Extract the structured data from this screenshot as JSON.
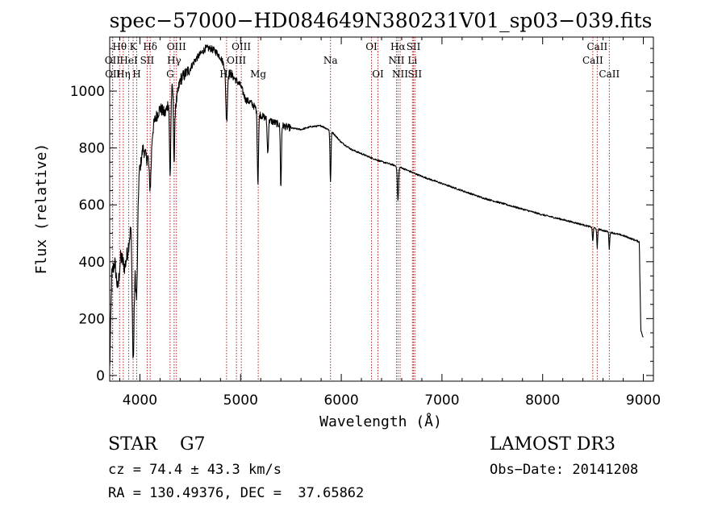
{
  "chart_data": {
    "type": "line",
    "title": "spec−57000−HD084649N380231V01_sp03−039.fits",
    "xlabel": "Wavelength (Å)",
    "ylabel": "Flux (relative)",
    "xlim": [
      3700,
      9100
    ],
    "ylim": [
      -20,
      1190
    ],
    "xticks": [
      {
        "value": 4000,
        "label": "4000"
      },
      {
        "value": 5000,
        "label": "5000"
      },
      {
        "value": 6000,
        "label": "6000"
      },
      {
        "value": 7000,
        "label": "7000"
      },
      {
        "value": 8000,
        "label": "8000"
      },
      {
        "value": 9000,
        "label": "9000"
      }
    ],
    "yticks": [
      {
        "value": 0,
        "label": "0"
      },
      {
        "value": 200,
        "label": "200"
      },
      {
        "value": 400,
        "label": "400"
      },
      {
        "value": 600,
        "label": "600"
      },
      {
        "value": 800,
        "label": "800"
      },
      {
        "value": 1000,
        "label": "1000"
      }
    ],
    "line_color": "#000000",
    "marker_color": "#b22222",
    "spectrum_anchors": [
      [
        3700,
        20
      ],
      [
        3720,
        350
      ],
      [
        3750,
        400
      ],
      [
        3780,
        300
      ],
      [
        3810,
        420
      ],
      [
        3850,
        380
      ],
      [
        3880,
        440
      ],
      [
        3910,
        520
      ],
      [
        3930,
        300
      ],
      [
        3960,
        420
      ],
      [
        3990,
        700
      ],
      [
        4030,
        800
      ],
      [
        4070,
        760
      ],
      [
        4100,
        820
      ],
      [
        4150,
        900
      ],
      [
        4200,
        940
      ],
      [
        4250,
        920
      ],
      [
        4300,
        980
      ],
      [
        4330,
        1020
      ],
      [
        4360,
        960
      ],
      [
        4400,
        1040
      ],
      [
        4450,
        1060
      ],
      [
        4500,
        1080
      ],
      [
        4550,
        1110
      ],
      [
        4600,
        1130
      ],
      [
        4650,
        1150
      ],
      [
        4700,
        1150
      ],
      [
        4750,
        1140
      ],
      [
        4800,
        1120
      ],
      [
        4850,
        1080
      ],
      [
        4900,
        1060
      ],
      [
        4950,
        1040
      ],
      [
        5000,
        1020
      ],
      [
        5050,
        970
      ],
      [
        5100,
        960
      ],
      [
        5150,
        940
      ],
      [
        5200,
        915
      ],
      [
        5300,
        895
      ],
      [
        5400,
        880
      ],
      [
        5500,
        870
      ],
      [
        5600,
        865
      ],
      [
        5700,
        875
      ],
      [
        5800,
        878
      ],
      [
        5900,
        860
      ],
      [
        6000,
        820
      ],
      [
        6100,
        795
      ],
      [
        6200,
        780
      ],
      [
        6300,
        765
      ],
      [
        6400,
        752
      ],
      [
        6500,
        742
      ],
      [
        6600,
        730
      ],
      [
        6700,
        715
      ],
      [
        6800,
        700
      ],
      [
        7000,
        675
      ],
      [
        7200,
        650
      ],
      [
        7400,
        625
      ],
      [
        7600,
        605
      ],
      [
        7800,
        585
      ],
      [
        8000,
        565
      ],
      [
        8200,
        548
      ],
      [
        8400,
        530
      ],
      [
        8600,
        510
      ],
      [
        8800,
        492
      ],
      [
        8960,
        470
      ],
      [
        8975,
        160
      ],
      [
        9000,
        130
      ]
    ],
    "spectrum_dips": [
      {
        "center": 3934,
        "depth": 260,
        "width": 8
      },
      {
        "center": 3969,
        "depth": 220,
        "width": 8
      },
      {
        "center": 4102,
        "depth": 160,
        "width": 10
      },
      {
        "center": 4300,
        "depth": 280,
        "width": 6
      },
      {
        "center": 4340,
        "depth": 250,
        "width": 6
      },
      {
        "center": 4861,
        "depth": 180,
        "width": 8
      },
      {
        "center": 5172,
        "depth": 250,
        "width": 6
      },
      {
        "center": 5270,
        "depth": 120,
        "width": 6
      },
      {
        "center": 5400,
        "depth": 220,
        "width": 5
      },
      {
        "center": 5893,
        "depth": 180,
        "width": 5
      },
      {
        "center": 6563,
        "depth": 120,
        "width": 6
      },
      {
        "center": 8498,
        "depth": 50,
        "width": 4
      },
      {
        "center": 8542,
        "depth": 70,
        "width": 4
      },
      {
        "center": 8662,
        "depth": 60,
        "width": 4
      }
    ],
    "spectral_lines": [
      {
        "wavelength": 3727,
        "label": "OII",
        "row": 2
      },
      {
        "wavelength": 3730,
        "label": "OII",
        "row": 3
      },
      {
        "wavelength": 3798,
        "label": "Hθ",
        "row": 1
      },
      {
        "wavelength": 3835,
        "label": "Hη",
        "row": 3
      },
      {
        "wavelength": 3889,
        "label": "HeI",
        "row": 2
      },
      {
        "wavelength": 3933,
        "label": "K",
        "row": 1
      },
      {
        "wavelength": 3968,
        "label": "H",
        "row": 3
      },
      {
        "wavelength": 4072,
        "label": "SII",
        "row": 2
      },
      {
        "wavelength": 4102,
        "label": "Hδ",
        "row": 1
      },
      {
        "wavelength": 4300,
        "label": "G",
        "row": 3
      },
      {
        "wavelength": 4340,
        "label": "Hγ",
        "row": 2
      },
      {
        "wavelength": 4363,
        "label": "OIII",
        "row": 1
      },
      {
        "wavelength": 4861,
        "label": "Hβ",
        "row": 3
      },
      {
        "wavelength": 4959,
        "label": "OIII",
        "row": 2
      },
      {
        "wavelength": 5007,
        "label": "OIII",
        "row": 1
      },
      {
        "wavelength": 5175,
        "label": "Mg",
        "row": 3
      },
      {
        "wavelength": 5893,
        "label": "Na",
        "row": 2
      },
      {
        "wavelength": 6300,
        "label": "OI",
        "row": 1
      },
      {
        "wavelength": 6364,
        "label": "OI",
        "row": 3
      },
      {
        "wavelength": 6548,
        "label": "NII",
        "row": 2
      },
      {
        "wavelength": 6563,
        "label": "Hα",
        "row": 1
      },
      {
        "wavelength": 6584,
        "label": "NII",
        "row": 3
      },
      {
        "wavelength": 6707,
        "label": "Li",
        "row": 2
      },
      {
        "wavelength": 6717,
        "label": "SII",
        "row": 1
      },
      {
        "wavelength": 6731,
        "label": "SII",
        "row": 3
      },
      {
        "wavelength": 8498,
        "label": "CaII",
        "row": 2
      },
      {
        "wavelength": 8542,
        "label": "CaII",
        "row": 1
      },
      {
        "wavelength": 8662,
        "label": "CaII",
        "row": 3
      }
    ]
  },
  "info": {
    "class_text": "STAR    G7",
    "survey_text": "LAMOST DR3",
    "cz_text": "cz = 74.4 ± 43.3 km/s",
    "obs_date_text": "Obs−Date: 20141208",
    "coords_text": "RA = 130.49376, DEC =  37.65862"
  }
}
